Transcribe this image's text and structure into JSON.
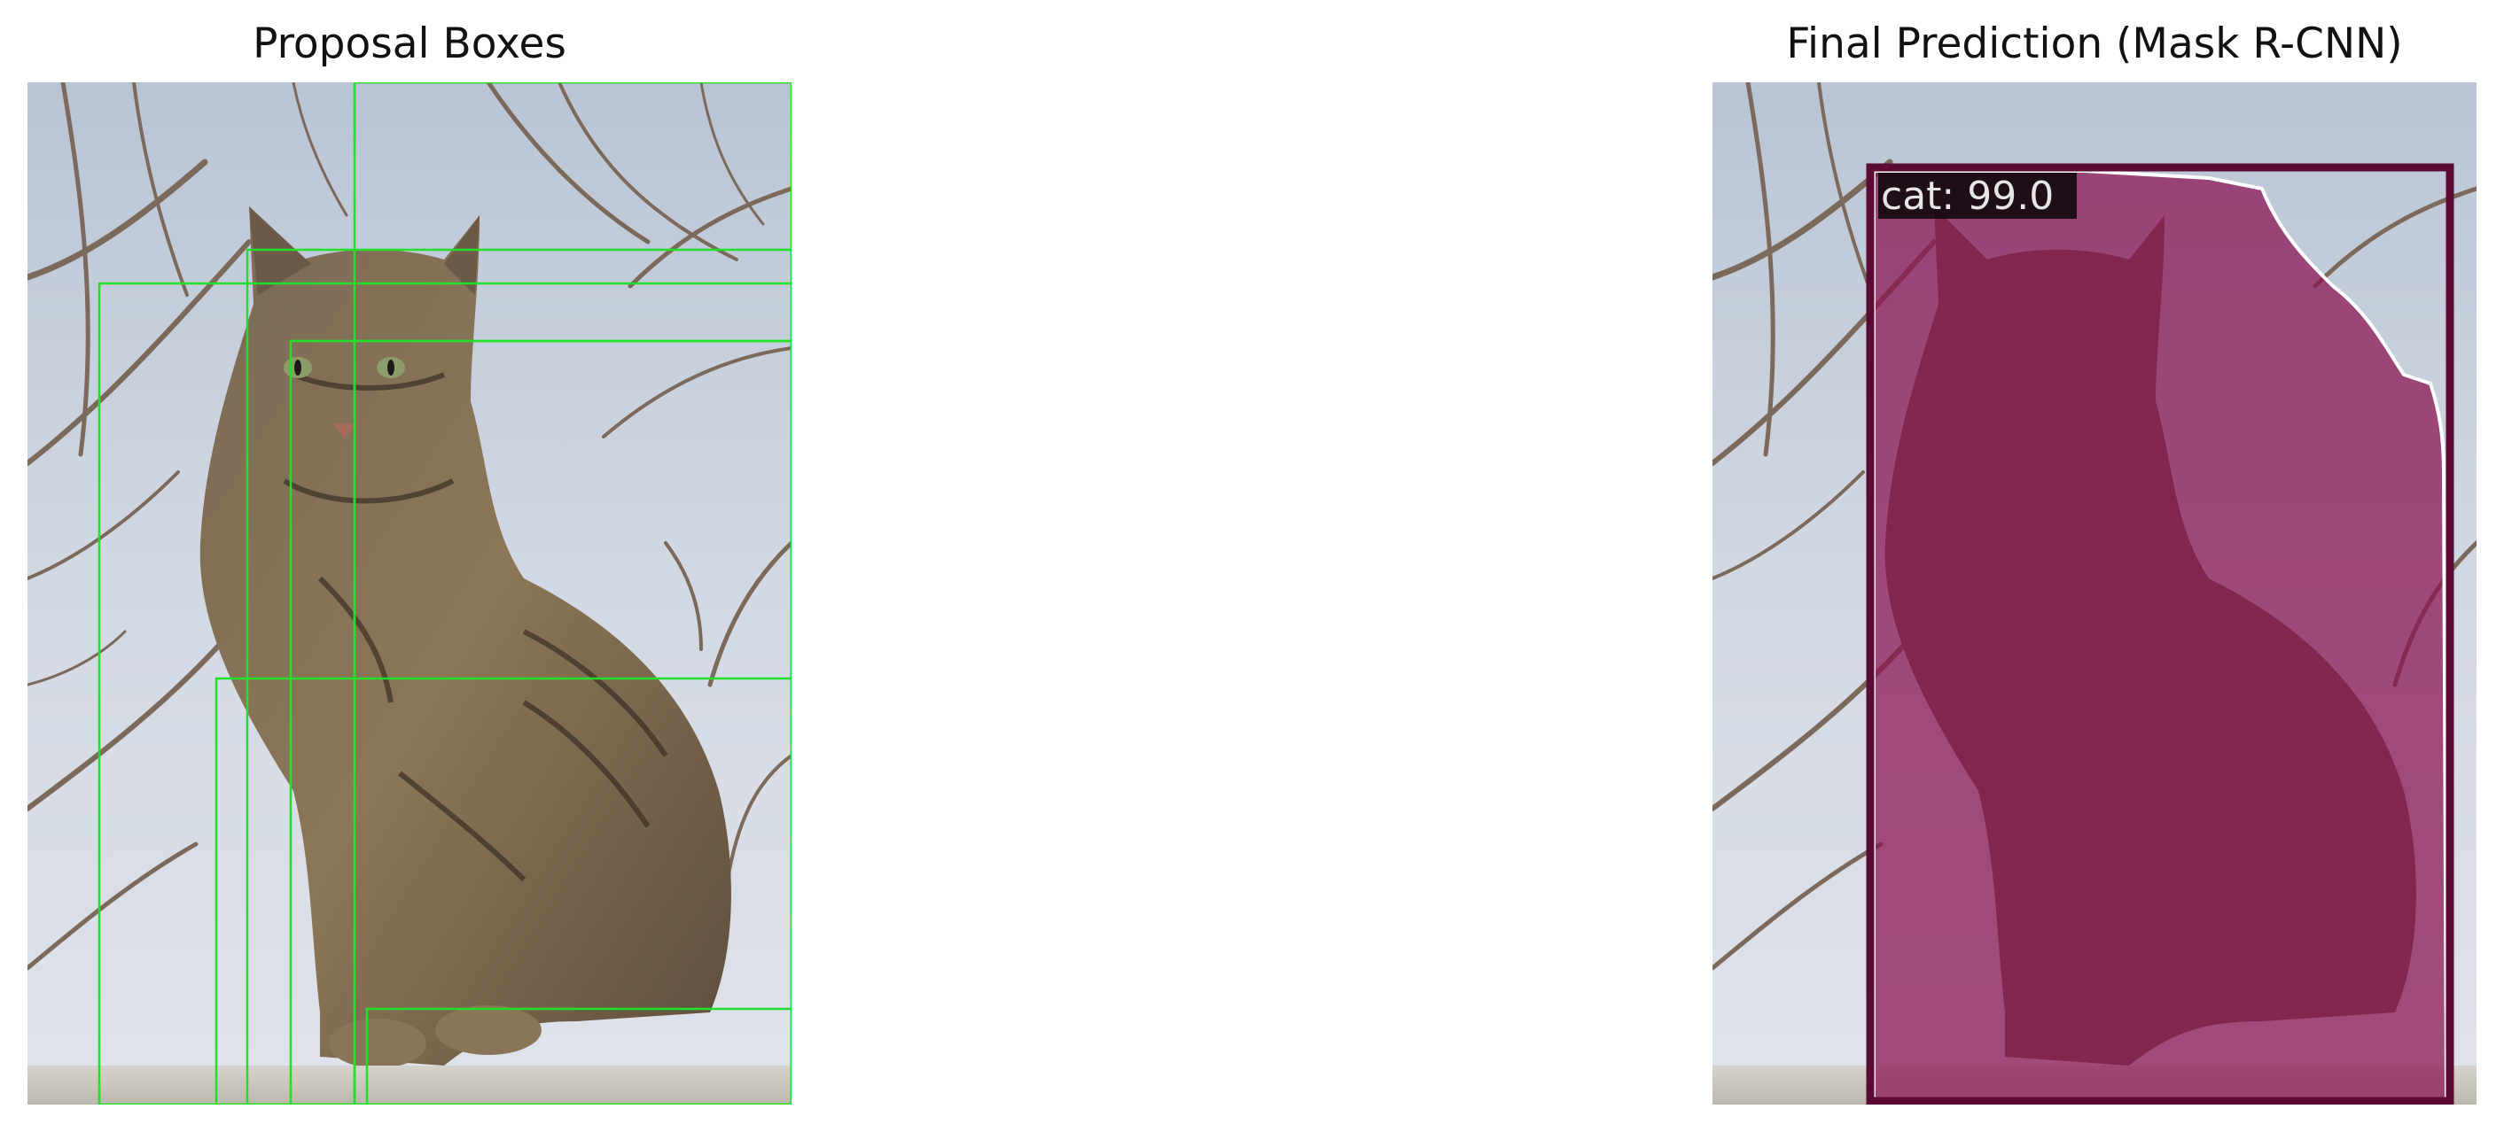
{
  "panels": {
    "left": {
      "title": "Proposal Boxes",
      "box_color": "#22e02a",
      "proposal_count": 7
    },
    "right": {
      "title": "Final Prediction (Mask R-CNN)",
      "detection": {
        "label": "cat: 99.0",
        "class": "cat",
        "score": 99.0,
        "mask_color": "#8a1050",
        "box_color": "#5a0a33",
        "label_bg_color": "#000000",
        "label_text_color": "#e6e6e6"
      }
    }
  },
  "scene": {
    "subject": "tabby-cat",
    "sky_color": "#c9d2de",
    "branch_color": "#7b6a5c",
    "ledge_color": "#d9d6d0"
  }
}
